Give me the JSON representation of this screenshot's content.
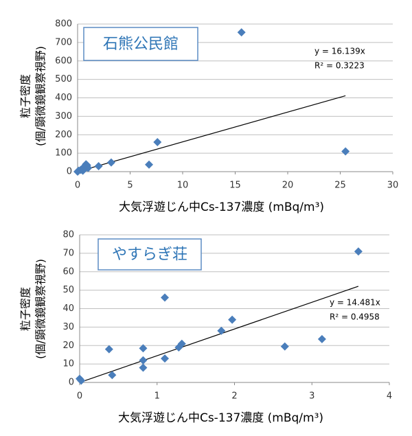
{
  "chart_data": [
    {
      "type": "scatter",
      "title": "石熊公民館",
      "x_label": "大気浮遊じん中Cs-137濃度 (mBq/m³)",
      "y_label": [
        "粒子密度",
        "(個/顕微鏡観察視野)"
      ],
      "x": [
        0,
        0.1,
        0.3,
        0.5,
        0.6,
        0.7,
        0.8,
        0.9,
        1.0,
        0.5,
        2.0,
        3.2,
        7.6,
        6.8,
        15.6,
        25.5
      ],
      "values": [
        0,
        5,
        10,
        15,
        25,
        30,
        40,
        35,
        20,
        5,
        30,
        50,
        160,
        38,
        755,
        110
      ],
      "color": "#4a7ebb",
      "xlim": [
        0,
        30
      ],
      "xticks": [
        0,
        5,
        10,
        15,
        20,
        25,
        30
      ],
      "ylim": [
        0,
        800
      ],
      "yticks": [
        0,
        100,
        200,
        300,
        400,
        500,
        600,
        700,
        800
      ],
      "grid": true,
      "trendline": {
        "slope": 16.139,
        "equation": "y = 16.139x",
        "r2": "R² = 0.3223"
      }
    },
    {
      "type": "scatter",
      "title": "やすらぎ荘",
      "x_label": "大気浮遊じん中Cs-137濃度 (mBq/m³)",
      "y_label": [
        "粒子密度",
        "(個/顕微鏡観察視野)"
      ],
      "x": [
        0,
        0.02,
        0.38,
        0.42,
        0.82,
        0.82,
        0.82,
        1.1,
        1.1,
        1.28,
        1.32,
        1.83,
        1.97,
        2.65,
        3.13,
        3.6
      ],
      "values": [
        2,
        1,
        18,
        4,
        18.5,
        12,
        8,
        46,
        13,
        19,
        21,
        28,
        34,
        19.5,
        23.5,
        71
      ],
      "color": "#4a7ebb",
      "xlim": [
        0,
        4
      ],
      "xticks": [
        0,
        1,
        2,
        3,
        4
      ],
      "ylim": [
        0,
        80
      ],
      "yticks": [
        0,
        10,
        20,
        30,
        40,
        50,
        60,
        70,
        80
      ],
      "grid": true,
      "trendline": {
        "slope": 14.481,
        "equation": "y = 14.481x",
        "r2": "R² = 0.4958"
      }
    }
  ]
}
